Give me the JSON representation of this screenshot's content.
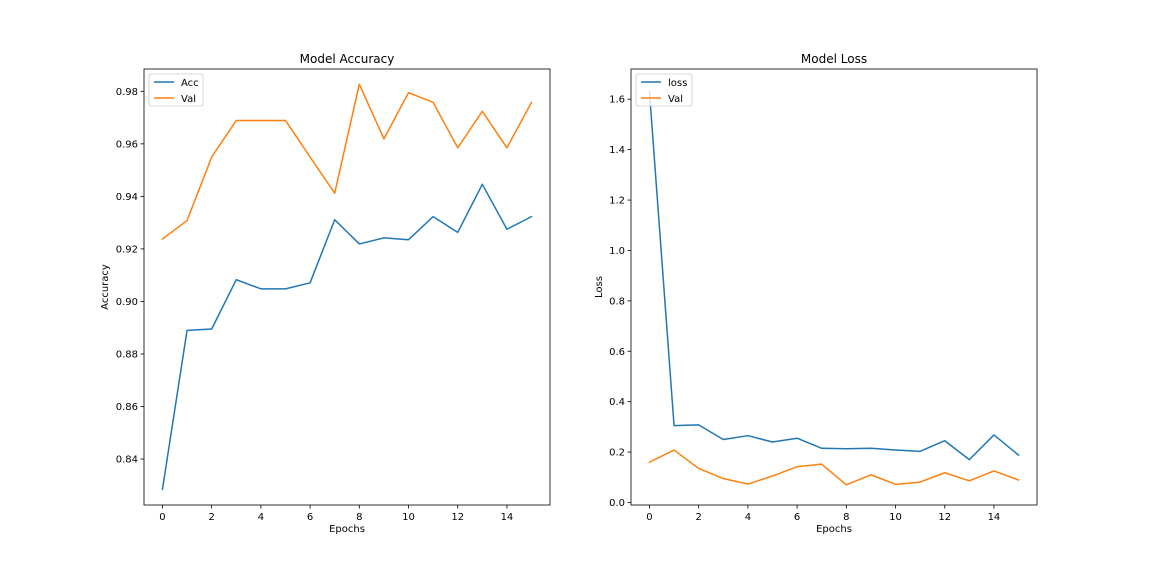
{
  "colors": {
    "series1": "#1f77b4",
    "series2": "#ff7f0e",
    "axes": "#000000",
    "background": "#ffffff"
  },
  "chart_data": [
    {
      "type": "line",
      "title": "Model Accuracy",
      "xlabel": "Epochs",
      "ylabel": "Accuracy",
      "xlim": [
        -0.75,
        15.75
      ],
      "ylim": [
        0.8225,
        0.9885
      ],
      "xticks": [
        0,
        2,
        4,
        6,
        8,
        10,
        12,
        14
      ],
      "yticks": [
        0.84,
        0.86,
        0.88,
        0.9,
        0.92,
        0.94,
        0.96,
        0.98
      ],
      "ytick_labels": [
        "0.84",
        "0.86",
        "0.88",
        "0.90",
        "0.92",
        "0.94",
        "0.96",
        "0.98"
      ],
      "grid": false,
      "legend_position": "upper left",
      "x": [
        0,
        1,
        2,
        3,
        4,
        5,
        6,
        7,
        8,
        9,
        10,
        11,
        12,
        13,
        14,
        15
      ],
      "series": [
        {
          "name": "Acc",
          "color": "#1f77b4",
          "values": [
            0.8285,
            0.889,
            0.8895,
            0.9083,
            0.9048,
            0.9048,
            0.9071,
            0.9311,
            0.9219,
            0.9242,
            0.9235,
            0.9323,
            0.9263,
            0.9446,
            0.9275,
            0.9323
          ]
        },
        {
          "name": "Val",
          "color": "#ff7f0e",
          "values": [
            0.9238,
            0.9308,
            0.955,
            0.9689,
            0.9689,
            0.9689,
            0.955,
            0.9412,
            0.9827,
            0.9619,
            0.9795,
            0.9758,
            0.9585,
            0.9724,
            0.9585,
            0.9758
          ]
        }
      ]
    },
    {
      "type": "line",
      "title": "Model Loss",
      "xlabel": "Epochs",
      "ylabel": "Loss",
      "xlim": [
        -0.75,
        15.75
      ],
      "ylim": [
        -0.01,
        1.72
      ],
      "xticks": [
        0,
        2,
        4,
        6,
        8,
        10,
        12,
        14
      ],
      "yticks": [
        0.0,
        0.2,
        0.4,
        0.6,
        0.8,
        1.0,
        1.2,
        1.4,
        1.6
      ],
      "ytick_labels": [
        "0.0",
        "0.2",
        "0.4",
        "0.6",
        "0.8",
        "1.0",
        "1.2",
        "1.4",
        "1.6"
      ],
      "grid": false,
      "legend_position": "upper left",
      "x": [
        0,
        1,
        2,
        3,
        4,
        5,
        6,
        7,
        8,
        9,
        10,
        11,
        12,
        13,
        14,
        15
      ],
      "series": [
        {
          "name": "loss",
          "color": "#1f77b4",
          "values": [
            1.63,
            0.305,
            0.308,
            0.25,
            0.265,
            0.24,
            0.255,
            0.215,
            0.213,
            0.215,
            0.208,
            0.203,
            0.245,
            0.17,
            0.268,
            0.188
          ]
        },
        {
          "name": "Val",
          "color": "#ff7f0e",
          "values": [
            0.16,
            0.208,
            0.135,
            0.095,
            0.073,
            0.105,
            0.142,
            0.152,
            0.07,
            0.11,
            0.072,
            0.081,
            0.118,
            0.086,
            0.125,
            0.089
          ]
        }
      ]
    }
  ]
}
